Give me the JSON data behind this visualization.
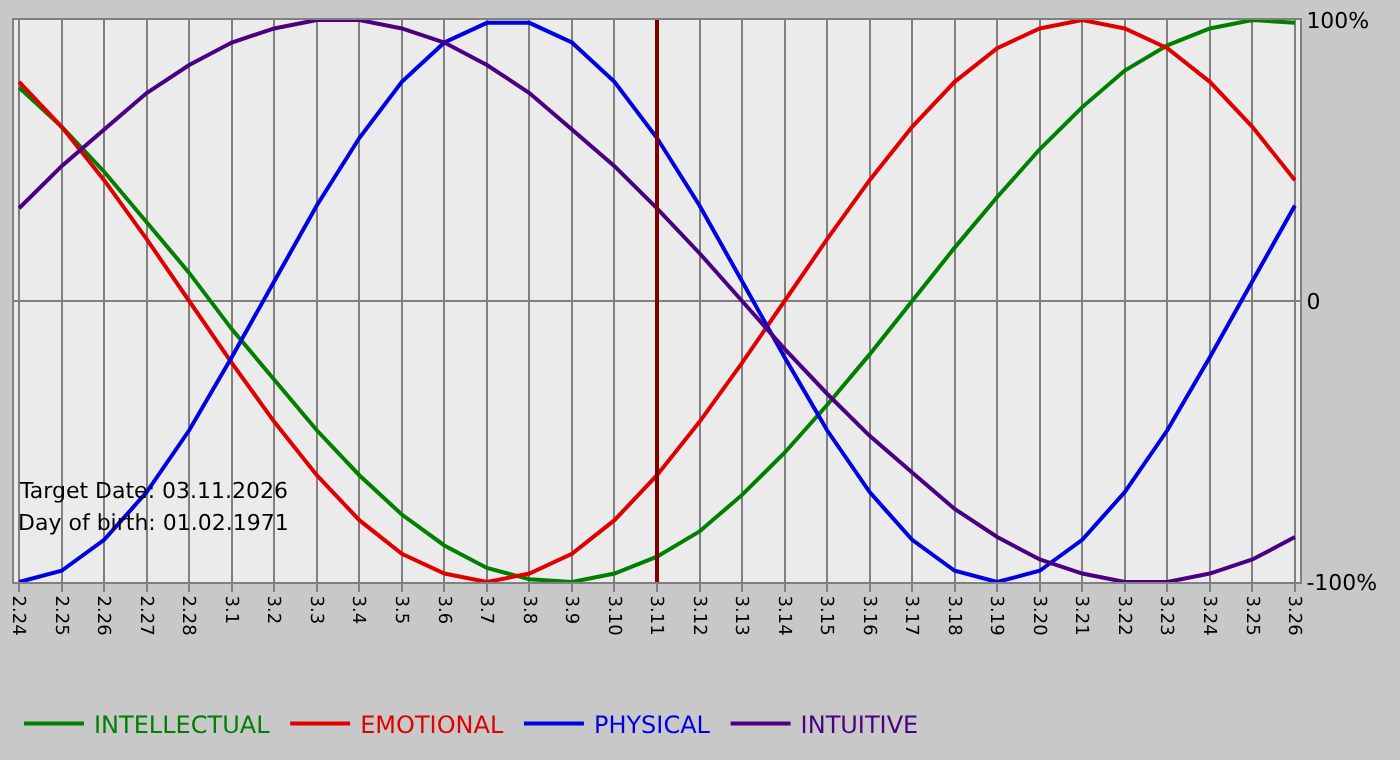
{
  "chart_data": {
    "type": "line",
    "categories": [
      "2.24",
      "2.25",
      "2.26",
      "2.27",
      "2.28",
      "3.1",
      "3.2",
      "3.3",
      "3.4",
      "3.5",
      "3.6",
      "3.7",
      "3.8",
      "3.9",
      "3.10",
      "3.11",
      "3.12",
      "3.13",
      "3.14",
      "3.15",
      "3.16",
      "3.17",
      "3.18",
      "3.19",
      "3.20",
      "3.21",
      "3.22",
      "3.23",
      "3.24",
      "3.25",
      "3.26"
    ],
    "series": [
      {
        "name": "INTELLECTUAL",
        "color": "#008000",
        "values": [
          76,
          62,
          46,
          28,
          10,
          -10,
          -28,
          -46,
          -62,
          -76,
          -87,
          -95,
          -99,
          -100,
          -97,
          -91,
          -82,
          -69,
          -54,
          -37,
          -19,
          0,
          19,
          37,
          54,
          69,
          82,
          91,
          97,
          100,
          99
        ]
      },
      {
        "name": "EMOTIONAL",
        "color": "#e00000",
        "values": [
          78,
          62,
          43,
          22,
          0,
          -22,
          -43,
          -62,
          -78,
          -90,
          -97,
          -100,
          -97,
          -90,
          -78,
          -62,
          -43,
          -22,
          0,
          22,
          43,
          62,
          78,
          90,
          97,
          100,
          97,
          90,
          78,
          62,
          43
        ]
      },
      {
        "name": "PHYSICAL",
        "color": "#0000e0",
        "values": [
          -100,
          -96,
          -85,
          -68,
          -46,
          -20,
          7,
          34,
          58,
          78,
          92,
          99,
          99,
          92,
          78,
          58,
          34,
          7,
          -20,
          -46,
          -68,
          -85,
          -96,
          -100,
          -96,
          -85,
          -68,
          -46,
          -20,
          7,
          34
        ]
      },
      {
        "name": "INTUITIVE",
        "color": "#4b0082",
        "values": [
          33,
          48,
          61,
          74,
          84,
          92,
          97,
          100,
          100,
          97,
          92,
          84,
          74,
          61,
          48,
          33,
          17,
          0,
          -17,
          -33,
          -48,
          -61,
          -74,
          -84,
          -92,
          -97,
          -100,
          -100,
          -97,
          -92,
          -84
        ]
      }
    ],
    "ylim": [
      -100,
      100
    ],
    "yticks": [
      {
        "value": -100,
        "label": "-100%"
      },
      0,
      {
        "value": 100,
        "label": "100%"
      }
    ],
    "grid": true,
    "legend": "bottom",
    "marker": "none",
    "line_style": "solid",
    "ref_lines": [
      {
        "axis": "x",
        "value": "3.11",
        "color": "#800000"
      }
    ],
    "annotations": [
      "Target Date: 03.11.2026",
      "Day of birth: 01.02.1971"
    ]
  }
}
